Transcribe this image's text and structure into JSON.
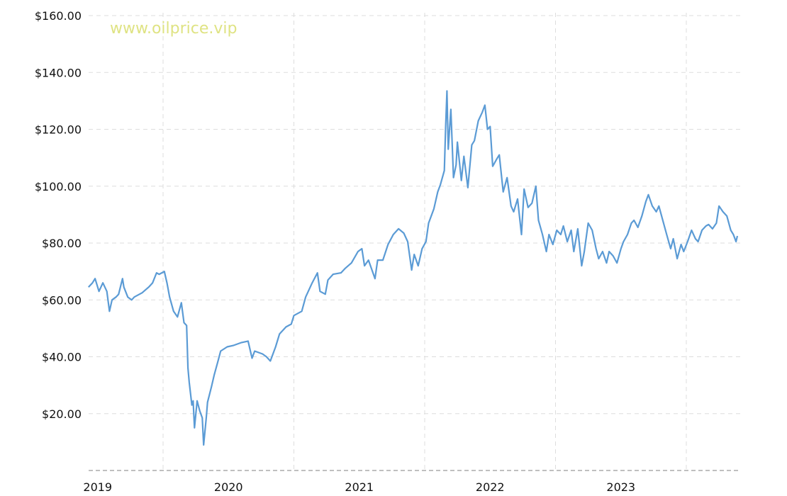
{
  "chart_data": {
    "type": "line",
    "title": "",
    "xlabel": "",
    "ylabel": "",
    "watermark": "www.oilprice.vip",
    "ylim": [
      0,
      160
    ],
    "xlim": [
      2019.43,
      2024.42
    ],
    "grid": true,
    "line_color": "#5b9bd5",
    "y_ticks": [
      {
        "value": 20,
        "label": "$20.00"
      },
      {
        "value": 40,
        "label": "$40.00"
      },
      {
        "value": 60,
        "label": "$60.00"
      },
      {
        "value": 80,
        "label": "$80.00"
      },
      {
        "value": 100,
        "label": "$100.00"
      },
      {
        "value": 120,
        "label": "$120.00"
      },
      {
        "value": 140,
        "label": "$140.00"
      },
      {
        "value": 160,
        "label": "$160.00"
      }
    ],
    "x_gridlines": [
      2020,
      2021,
      2022,
      2023,
      2024
    ],
    "x_ticks": [
      {
        "value": 2019.5,
        "label": "2019"
      },
      {
        "value": 2020.5,
        "label": "2020"
      },
      {
        "value": 2021.5,
        "label": "2021"
      },
      {
        "value": 2022.5,
        "label": "2022"
      },
      {
        "value": 2023.5,
        "label": "2023"
      }
    ],
    "series": [
      {
        "name": "Oil price (USD)",
        "x": [
          2019.43,
          2019.46,
          2019.48,
          2019.51,
          2019.54,
          2019.57,
          2019.59,
          2019.61,
          2019.64,
          2019.66,
          2019.69,
          2019.7,
          2019.73,
          2019.76,
          2019.78,
          2019.84,
          2019.89,
          2019.92,
          2019.95,
          2019.97,
          2020.01,
          2020.03,
          2020.05,
          2020.08,
          2020.11,
          2020.14,
          2020.16,
          2020.18,
          2020.19,
          2020.2,
          2020.22,
          2020.23,
          2020.24,
          2020.26,
          2020.28,
          2020.3,
          2020.31,
          2020.33,
          2020.34,
          2020.37,
          2020.39,
          2020.42,
          2020.44,
          2020.49,
          2020.54,
          2020.6,
          2020.65,
          2020.68,
          2020.7,
          2020.76,
          2020.79,
          2020.82,
          2020.86,
          2020.89,
          2020.94,
          2020.98,
          2021.0,
          2021.06,
          2021.09,
          2021.14,
          2021.18,
          2021.2,
          2021.24,
          2021.26,
          2021.3,
          2021.36,
          2021.39,
          2021.44,
          2021.49,
          2021.52,
          2021.54,
          2021.57,
          2021.62,
          2021.64,
          2021.68,
          2021.72,
          2021.76,
          2021.8,
          2021.84,
          2021.87,
          2021.9,
          2021.92,
          2021.95,
          2021.98,
          2022.01,
          2022.03,
          2022.07,
          2022.1,
          2022.12,
          2022.15,
          2022.16,
          2022.17,
          2022.18,
          2022.2,
          2022.22,
          2022.24,
          2022.25,
          2022.28,
          2022.3,
          2022.33,
          2022.36,
          2022.38,
          2022.41,
          2022.44,
          2022.46,
          2022.48,
          2022.5,
          2022.52,
          2022.55,
          2022.57,
          2022.6,
          2022.63,
          2022.66,
          2022.68,
          2022.71,
          2022.74,
          2022.76,
          2022.79,
          2022.82,
          2022.85,
          2022.87,
          2022.9,
          2022.93,
          2022.95,
          2022.98,
          2023.01,
          2023.04,
          2023.06,
          2023.09,
          2023.12,
          2023.14,
          2023.17,
          2023.2,
          2023.22,
          2023.25,
          2023.28,
          2023.31,
          2023.33,
          2023.36,
          2023.39,
          2023.41,
          2023.44,
          2023.47,
          2023.5,
          2023.52,
          2023.55,
          2023.58,
          2023.6,
          2023.63,
          2023.66,
          2023.69,
          2023.71,
          2023.74,
          2023.77,
          2023.79,
          2023.82,
          2023.85,
          2023.88,
          2023.9,
          2023.93,
          2023.96,
          2023.98,
          2024.01,
          2024.04,
          2024.07,
          2024.09,
          2024.12,
          2024.15,
          2024.17,
          2024.2,
          2024.23,
          2024.25,
          2024.28,
          2024.31,
          2024.34,
          2024.36,
          2024.38,
          2024.39
        ],
        "y": [
          64.5,
          66,
          67.5,
          63,
          66,
          63,
          56,
          60,
          61,
          62,
          67.5,
          64.5,
          61,
          60,
          61,
          62.5,
          64.5,
          66,
          69.5,
          69,
          70,
          66,
          61,
          56,
          54,
          59,
          52,
          51,
          36,
          31,
          23,
          24.5,
          15,
          24.5,
          21,
          18.5,
          9,
          18.5,
          24,
          29.5,
          33.5,
          38.5,
          42,
          43.5,
          44,
          45,
          45.5,
          39.5,
          42,
          41,
          40,
          38.5,
          43.5,
          48,
          50.5,
          51.5,
          54.5,
          56,
          61,
          66,
          69.5,
          63,
          62,
          67,
          69,
          69.5,
          71,
          73,
          77,
          78,
          72,
          74,
          67.5,
          74,
          74,
          79.5,
          83,
          85,
          83.5,
          80.5,
          70.5,
          76,
          72,
          78,
          80.5,
          87,
          92,
          98,
          100.5,
          105.5,
          120.5,
          133.5,
          113,
          127,
          103,
          107.5,
          115.5,
          102,
          110.5,
          99.5,
          114.5,
          116,
          123,
          126,
          128.5,
          120,
          121,
          107,
          109.5,
          111,
          98,
          103,
          93,
          91,
          95.5,
          83,
          99,
          92.5,
          94,
          100,
          88,
          83,
          77,
          83,
          79.5,
          84.5,
          83,
          86,
          80.5,
          84.5,
          77,
          85,
          72,
          77,
          87,
          84.5,
          78,
          74.5,
          77,
          73,
          77,
          75.5,
          73,
          78,
          80.5,
          83,
          87,
          88,
          85.5,
          89.5,
          94.5,
          97,
          93,
          91,
          93,
          88,
          83,
          78,
          81.5,
          74.5,
          79.5,
          77,
          80.5,
          84.5,
          81.5,
          80.5,
          84.5,
          86,
          86.5,
          85,
          87,
          93,
          91,
          89.5,
          84.5,
          83,
          80.5,
          82.5
        ]
      }
    ]
  }
}
